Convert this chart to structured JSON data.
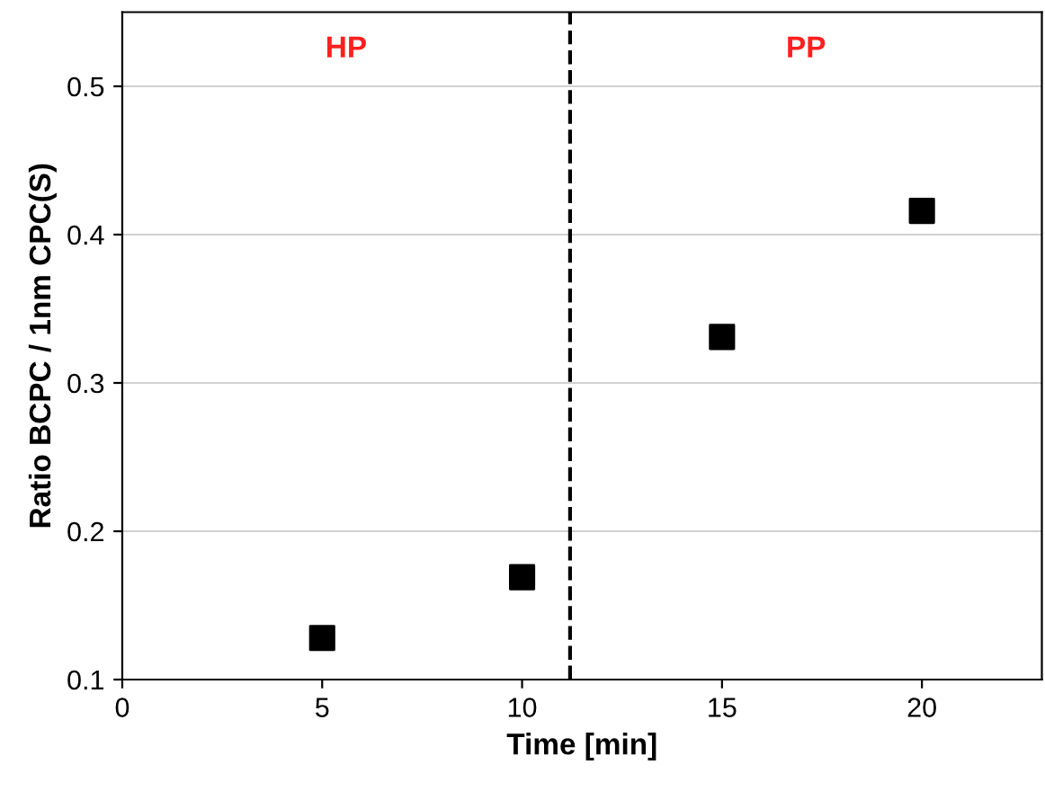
{
  "chart_data": {
    "type": "scatter",
    "xlabel": "Time [min]",
    "ylabel": "Ratio BCPC / 1nm CPC(S)",
    "x": [
      5,
      10,
      15,
      20
    ],
    "values": [
      0.128,
      0.169,
      0.331,
      0.416
    ],
    "color": "#000000",
    "marker": "square",
    "xlim": [
      0,
      23
    ],
    "xticks": [
      0,
      5,
      10,
      15,
      20
    ],
    "ylim": [
      0.1,
      0.55
    ],
    "yticks": [
      0.1,
      0.2,
      0.3,
      0.4,
      0.5
    ],
    "grid": "y",
    "legend": false,
    "ref_lines": [
      {
        "axis": "x",
        "value": 11.2,
        "line_style": "dashed",
        "color": "#000000"
      }
    ],
    "annotations": [
      "HP",
      "PP"
    ]
  }
}
